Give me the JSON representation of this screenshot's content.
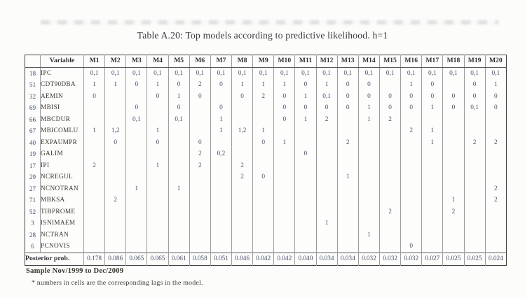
{
  "title": "Table A.20: Top models according to predictive likelihood. h=1",
  "table": {
    "corner_header": "",
    "variable_header": "Variable",
    "model_headers": [
      "M1",
      "M2",
      "M3",
      "M4",
      "M5",
      "M6",
      "M7",
      "M8",
      "M9",
      "M10",
      "M11",
      "M12",
      "M13",
      "M14",
      "M15",
      "M16",
      "M17",
      "M18",
      "M19",
      "M20"
    ],
    "rows": [
      {
        "num": "18",
        "name": "IPC",
        "values": [
          "0,1",
          "0,1",
          "0,1",
          "0,1",
          "0,1",
          "0,1",
          "0,1",
          "0,1",
          "0,1",
          "0,1",
          "0,1",
          "0,1",
          "0,1",
          "0,1",
          "0,1",
          "0,1",
          "0,1",
          "0,1",
          "0,1",
          "0,1"
        ]
      },
      {
        "num": "51",
        "name": "CDT90DBA",
        "values": [
          "1",
          "1",
          "0",
          "1",
          "0",
          "2",
          "0",
          "1",
          "1",
          "1",
          "0",
          "1",
          "0",
          "0",
          "",
          "1",
          "0",
          "",
          "0",
          "1"
        ]
      },
      {
        "num": "32",
        "name": "AEMIN",
        "values": [
          "0",
          "",
          "",
          "0",
          "1",
          "0",
          "",
          "0",
          "2",
          "0",
          "1",
          "0,1",
          "0",
          "0",
          "0",
          "0",
          "0",
          "0",
          "0",
          "0"
        ]
      },
      {
        "num": "69",
        "name": "MBISI",
        "values": [
          "",
          "",
          "0",
          "",
          "0",
          "",
          "0",
          "",
          "",
          "0",
          "0",
          "0",
          "0",
          "1",
          "0",
          "0",
          "1",
          "0",
          "0,1",
          "0"
        ]
      },
      {
        "num": "66",
        "name": "MBCDUR",
        "values": [
          "",
          "",
          "0,1",
          "",
          "0,1",
          "",
          "1",
          "",
          "",
          "0",
          "1",
          "2",
          "",
          "1",
          "2",
          "",
          "",
          "",
          "",
          ""
        ]
      },
      {
        "num": "67",
        "name": "MBICOMLU",
        "values": [
          "1",
          "1,2",
          "",
          "1",
          "",
          "",
          "1",
          "1,2",
          "1",
          "",
          "",
          "",
          "",
          "",
          "",
          "2",
          "1",
          "",
          "",
          ""
        ]
      },
      {
        "num": "40",
        "name": "EXPAUMPR",
        "values": [
          "",
          "0",
          "",
          "0",
          "",
          "0",
          "",
          "",
          "0",
          "1",
          "",
          "",
          "2",
          "",
          "",
          "",
          "1",
          "",
          "2",
          "2"
        ]
      },
      {
        "num": "19",
        "name": "GALIM",
        "values": [
          "",
          "",
          "",
          "",
          "",
          "2",
          "0,2",
          "",
          "",
          "",
          "0",
          "",
          "",
          "",
          "",
          "",
          "",
          "",
          "",
          ""
        ]
      },
      {
        "num": "17",
        "name": "IPI",
        "values": [
          "2",
          "",
          "",
          "1",
          "",
          "2",
          "",
          "2",
          "",
          "",
          "",
          "",
          "",
          "",
          "",
          "",
          "",
          "",
          "",
          ""
        ]
      },
      {
        "num": "29",
        "name": "NCREGUL",
        "values": [
          "",
          "",
          "",
          "",
          "",
          "",
          "",
          "2",
          "0",
          "",
          "",
          "",
          "1",
          "",
          "",
          "",
          "",
          "",
          "",
          ""
        ]
      },
      {
        "num": "27",
        "name": "NCNOTRAN",
        "values": [
          "",
          "",
          "1",
          "",
          "1",
          "",
          "",
          "",
          "",
          "",
          "",
          "",
          "",
          "",
          "",
          "",
          "",
          "",
          "",
          "2"
        ]
      },
      {
        "num": "71",
        "name": "MBKSA",
        "values": [
          "",
          "2",
          "",
          "",
          "",
          "",
          "",
          "",
          "",
          "",
          "",
          "",
          "",
          "",
          "",
          "",
          "",
          "1",
          "",
          "2"
        ]
      },
      {
        "num": "52",
        "name": "TIBPROME",
        "values": [
          "",
          "",
          "",
          "",
          "",
          "",
          "",
          "",
          "",
          "",
          "",
          "",
          "",
          "",
          "2",
          "",
          "",
          "2",
          "",
          ""
        ]
      },
      {
        "num": "3",
        "name": "ISNIMAEM",
        "values": [
          "",
          "",
          "",
          "",
          "",
          "",
          "",
          "",
          "",
          "",
          "",
          "1",
          "",
          "",
          "",
          "",
          "",
          "",
          "",
          ""
        ]
      },
      {
        "num": "28",
        "name": "NCTRAN",
        "values": [
          "",
          "",
          "",
          "",
          "",
          "",
          "",
          "",
          "",
          "",
          "",
          "",
          "",
          "1",
          "",
          "",
          "",
          "",
          "",
          ""
        ]
      },
      {
        "num": "6",
        "name": "PCNOVIS",
        "values": [
          "",
          "",
          "",
          "",
          "",
          "",
          "",
          "",
          "",
          "",
          "",
          "",
          "",
          "",
          "",
          "0",
          "",
          "",
          "",
          ""
        ]
      }
    ],
    "posterior": {
      "label": "Posterior prob.",
      "values": [
        "0.178",
        "0.086",
        "0.065",
        "0.065",
        "0.061",
        "0.058",
        "0.051",
        "0.046",
        "0.042",
        "0.042",
        "0.040",
        "0.034",
        "0.034",
        "0.032",
        "0.032",
        "0.032",
        "0.027",
        "0.025",
        "0.025",
        "0.024"
      ]
    }
  },
  "footer": {
    "sample": "Sample Nov/1999 to Dec/2009",
    "note": "* numbers in cells are the corresponding lags in the model."
  }
}
